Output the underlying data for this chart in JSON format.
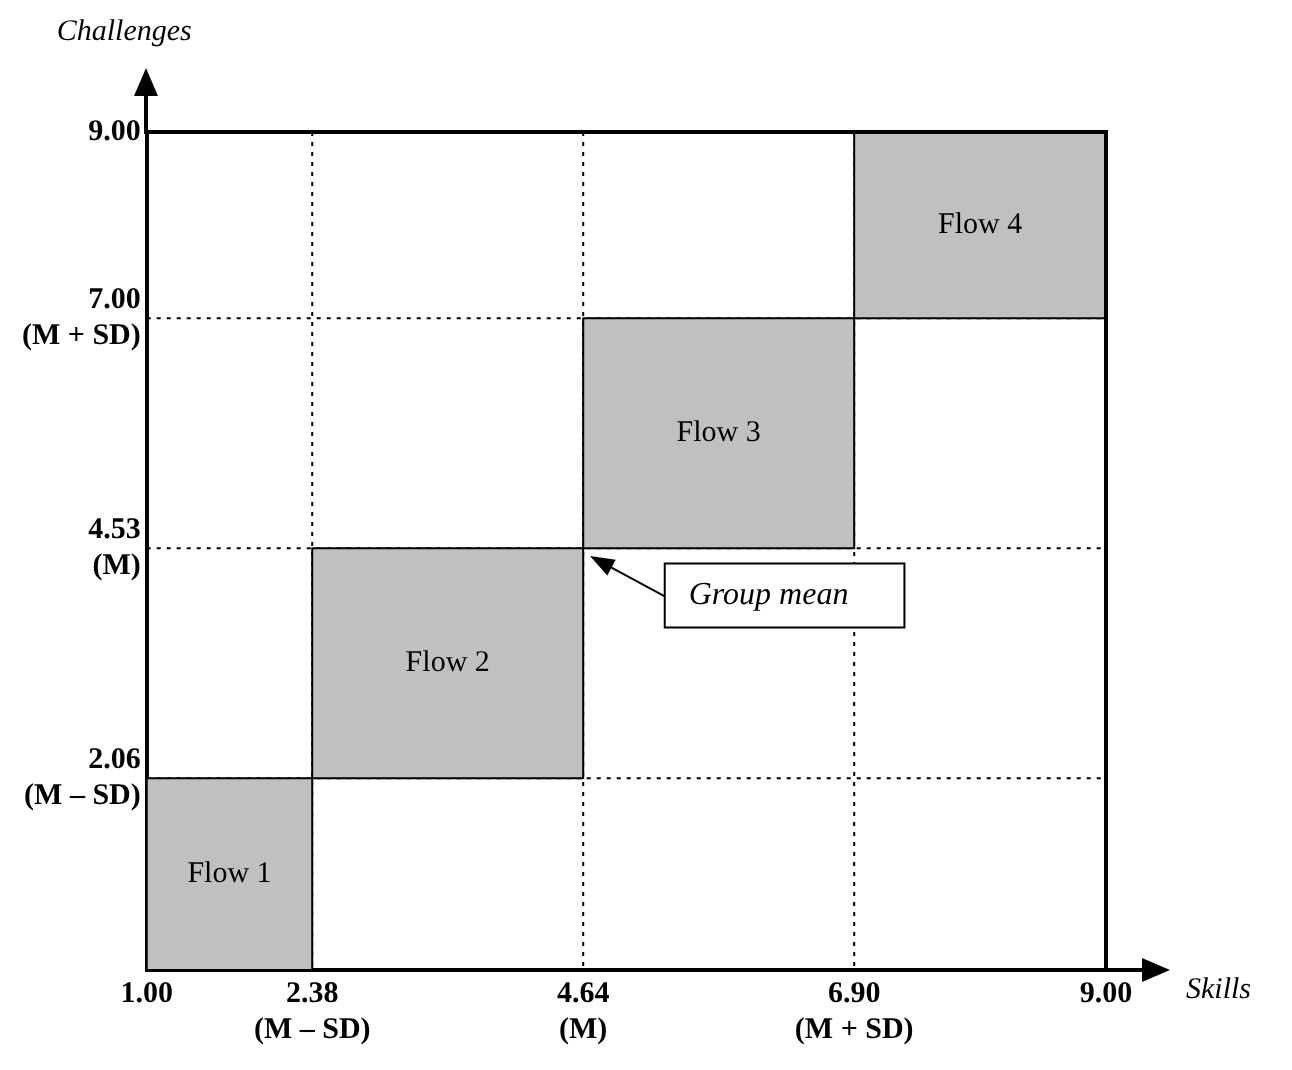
{
  "chart_data": {
    "type": "area",
    "xlabel": "Skills",
    "ylabel": "Challenges",
    "xlim": [
      1,
      9
    ],
    "ylim": [
      0,
      9
    ],
    "xticks": [
      {
        "value": 1,
        "label": "1.00"
      },
      {
        "value": 2.38,
        "label": "2.38\n(M – SD)"
      },
      {
        "value": 4.64,
        "label": "4.64\n(M)"
      },
      {
        "value": 6.9,
        "label": "6.90\n(M + SD)"
      },
      {
        "value": 9,
        "label": "9.00"
      }
    ],
    "yticks": [
      {
        "value": 2.06,
        "label": "2.06\n(M – SD)"
      },
      {
        "value": 4.53,
        "label": "4.53\n(M)"
      },
      {
        "value": 7,
        "label": "7.00\n(M + SD)"
      },
      {
        "value": 9,
        "label": "9.00"
      }
    ],
    "grid": true,
    "series": [
      {
        "name": "Flow 1",
        "color": "#c0c0c0",
        "x": [
          1,
          2.38,
          2.38,
          1,
          1
        ],
        "values": [
          0,
          0,
          2.06,
          2.06,
          0
        ]
      },
      {
        "name": "Flow 2",
        "color": "#c0c0c0",
        "x": [
          2.38,
          4.64,
          4.64,
          2.38,
          2.38
        ],
        "values": [
          2.06,
          2.06,
          4.53,
          4.53,
          2.06
        ]
      },
      {
        "name": "Flow 3",
        "color": "#c0c0c0",
        "x": [
          4.64,
          6.9,
          6.9,
          4.64,
          4.64
        ],
        "values": [
          4.53,
          4.53,
          7,
          7,
          4.53
        ]
      },
      {
        "name": "Flow 4",
        "color": "#c0c0c0",
        "x": [
          6.9,
          9,
          9,
          6.9,
          6.9
        ],
        "values": [
          7,
          7,
          9,
          9,
          7
        ]
      }
    ],
    "annotations": [
      "Group mean"
    ]
  }
}
